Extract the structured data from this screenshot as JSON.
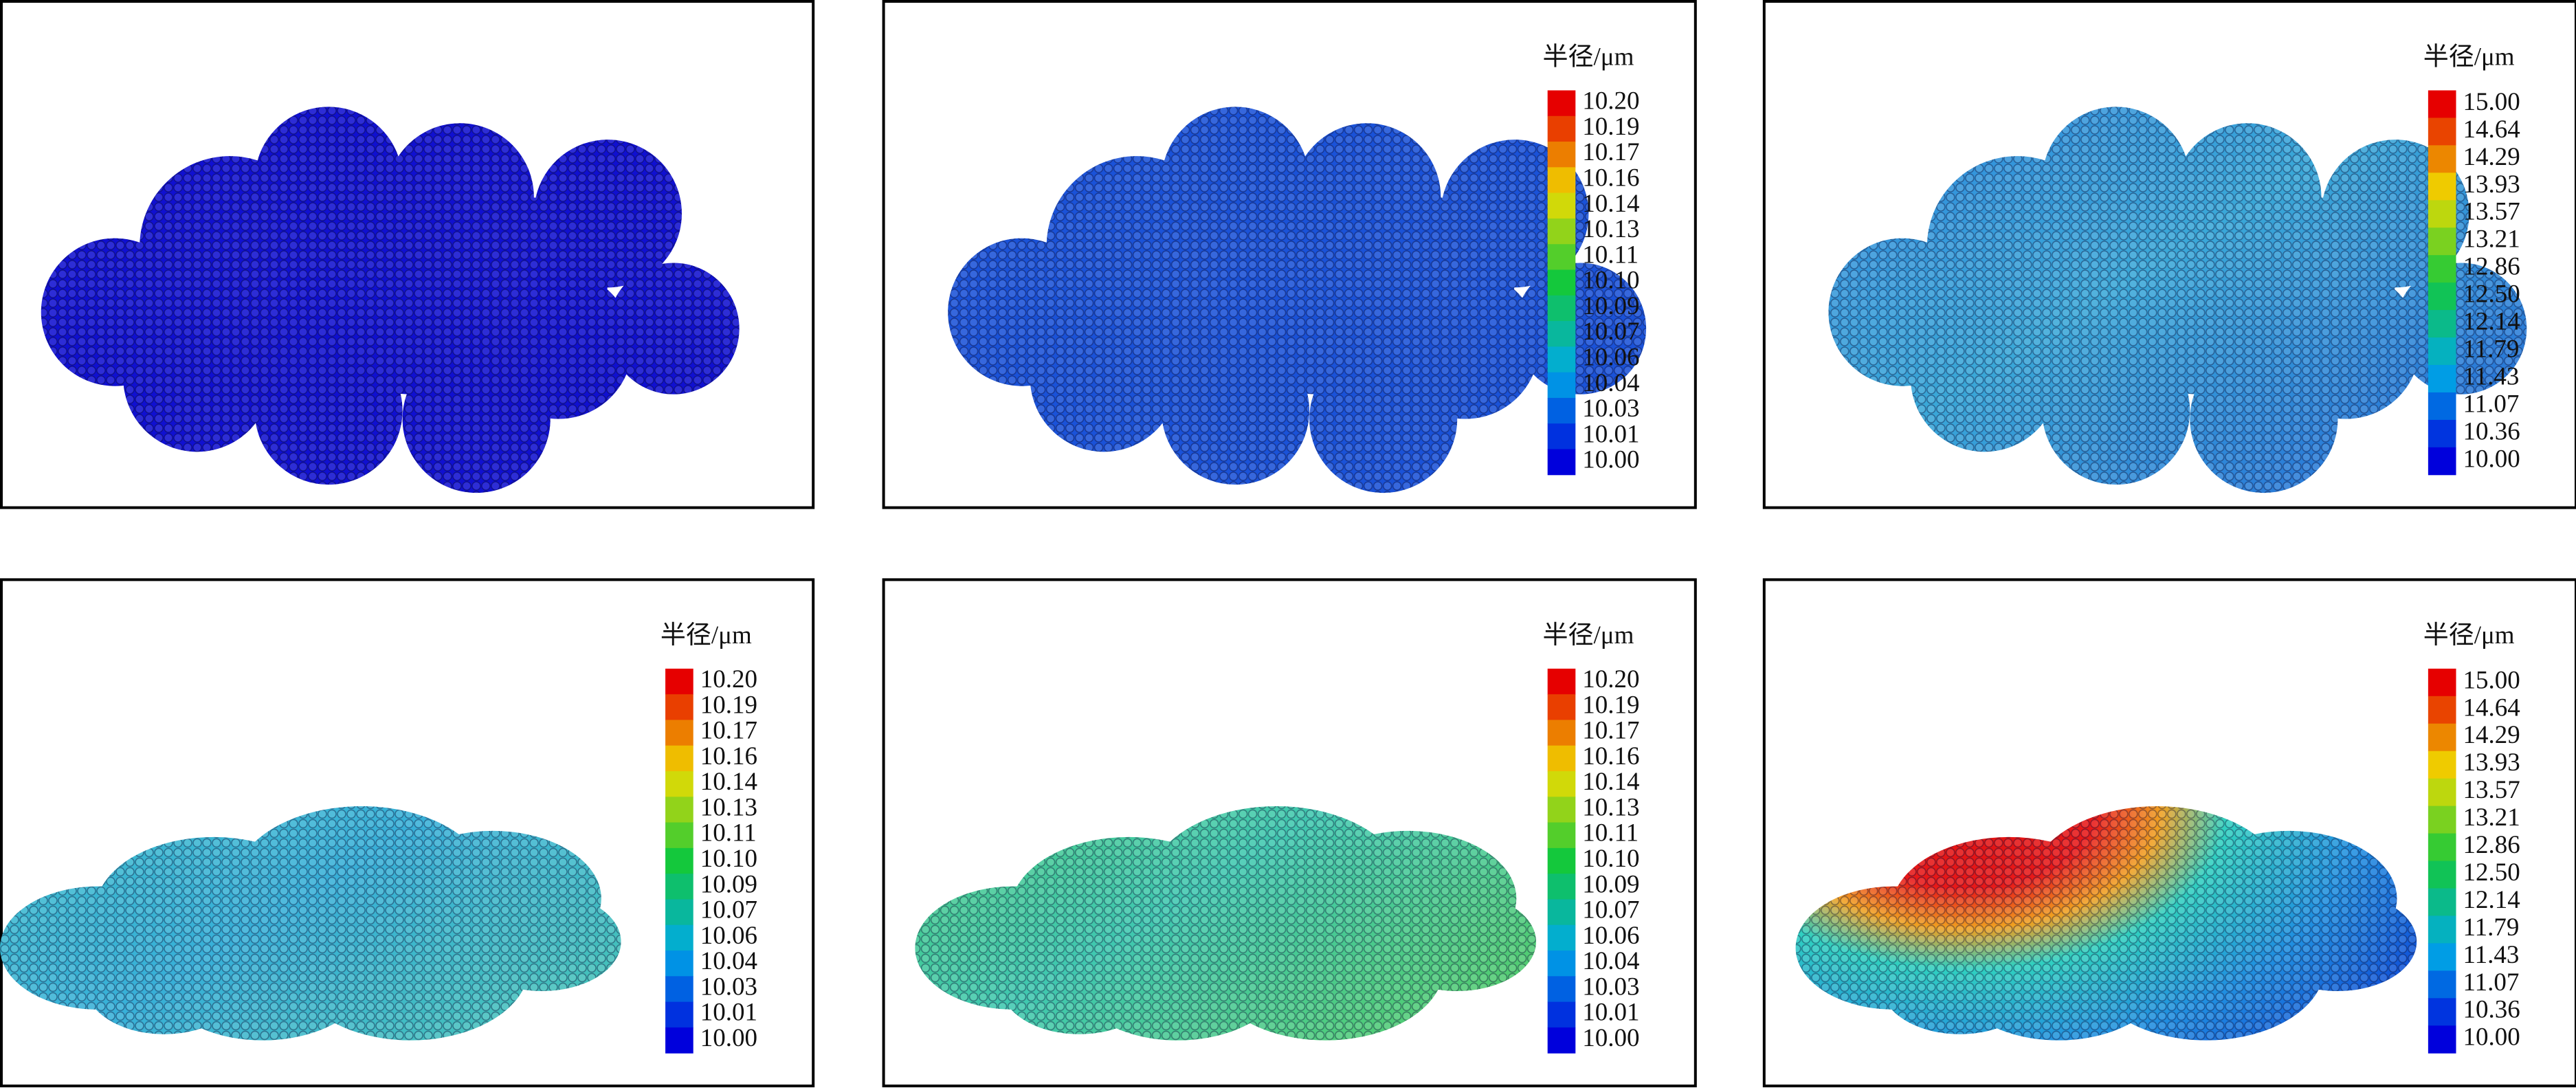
{
  "colorbars": [
    {
      "title": "半径/μm",
      "labels": [
        "10.20",
        "10.19",
        "10.17",
        "10.16",
        "10.14",
        "10.13",
        "10.11",
        "10.10",
        "10.09",
        "10.07",
        "10.06",
        "10.04",
        "10.03",
        "10.01",
        "10.00"
      ]
    },
    {
      "title": "半径/μm",
      "labels": [
        "15.00",
        "14.64",
        "14.29",
        "13.93",
        "13.57",
        "13.21",
        "12.86",
        "12.50",
        "12.14",
        "11.79",
        "11.43",
        "11.07",
        "10.36",
        "10.00"
      ]
    },
    {
      "title": "半径/μm",
      "labels": [
        "10.20",
        "10.19",
        "10.17",
        "10.16",
        "10.14",
        "10.13",
        "10.11",
        "10.10",
        "10.09",
        "10.07",
        "10.06",
        "10.04",
        "10.03",
        "10.01",
        "10.00"
      ]
    },
    {
      "title": "半径/μm",
      "labels": [
        "10.20",
        "10.19",
        "10.17",
        "10.16",
        "10.14",
        "10.13",
        "10.11",
        "10.10",
        "10.09",
        "10.07",
        "10.06",
        "10.04",
        "10.03",
        "10.01",
        "10.00"
      ]
    },
    {
      "title": "半径/μm",
      "labels": [
        "15.00",
        "14.64",
        "14.29",
        "13.93",
        "13.57",
        "13.21",
        "12.86",
        "12.50",
        "12.14",
        "11.79",
        "11.43",
        "11.07",
        "10.36",
        "10.00"
      ]
    }
  ]
}
